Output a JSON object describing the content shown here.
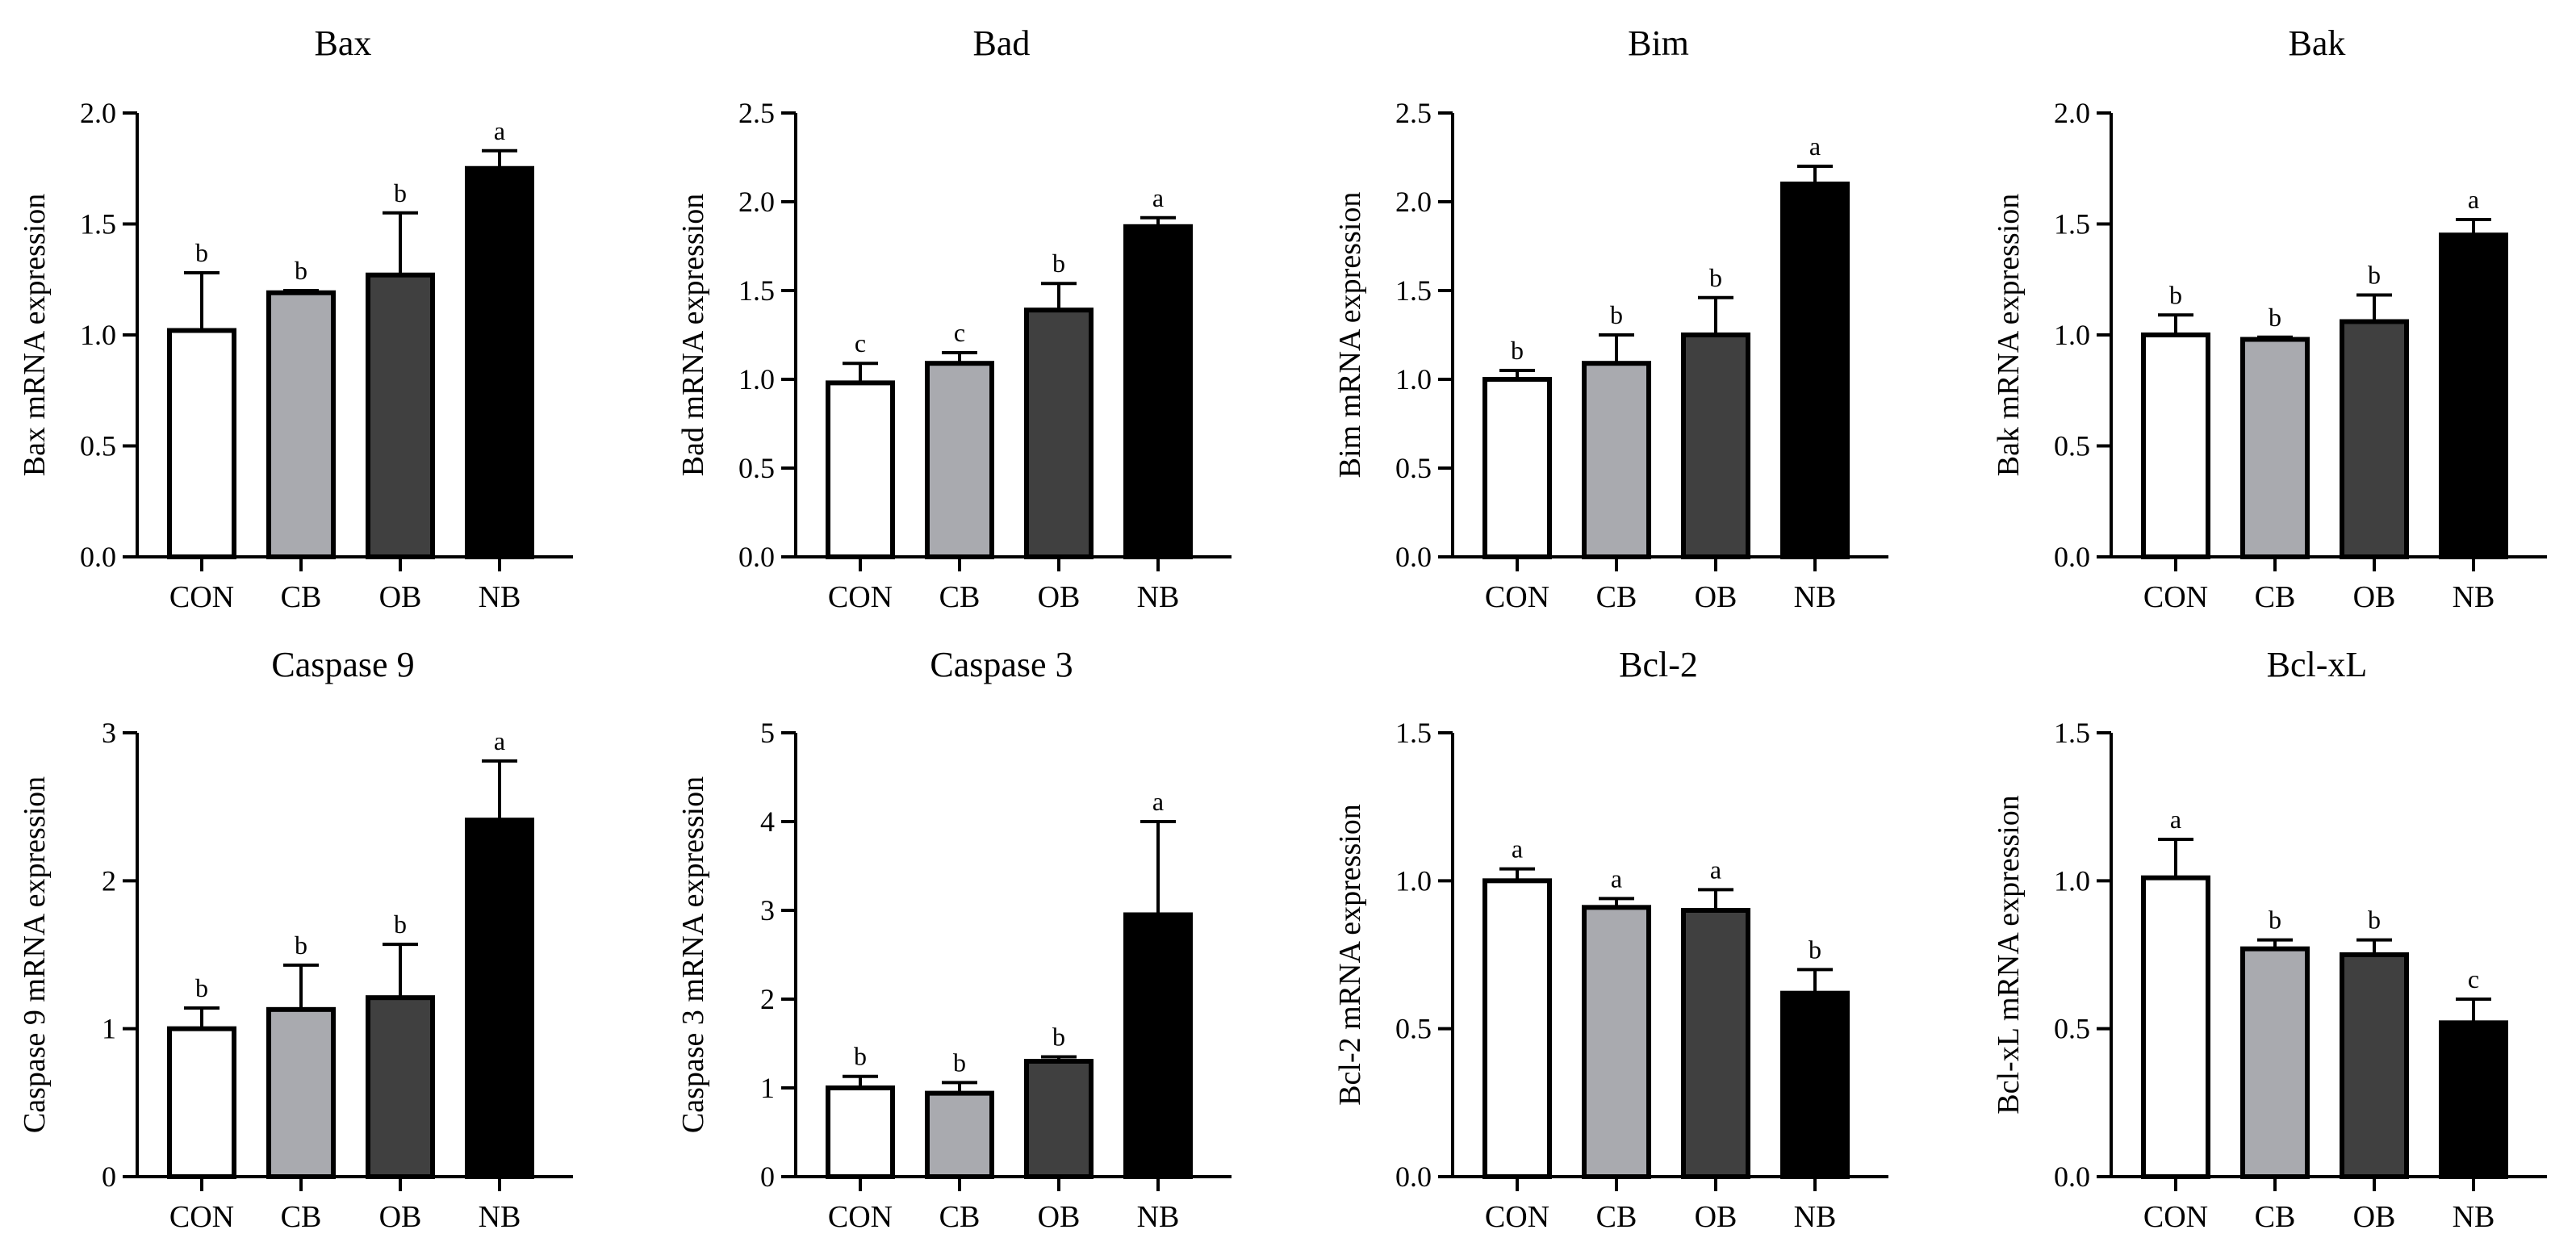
{
  "chart_data": [
    {
      "type": "bar",
      "title": "Bax",
      "ylabel": "Bax mRNA expression",
      "categories": [
        "CON",
        "CB",
        "OB",
        "NB"
      ],
      "values": [
        1.02,
        1.19,
        1.27,
        1.75
      ],
      "errors": [
        0.26,
        0.01,
        0.28,
        0.08
      ],
      "letters": [
        "b",
        "b",
        "b",
        "a"
      ],
      "ylim": [
        0,
        2.0
      ],
      "yticks": [
        "0.0",
        "0.5",
        "1.0",
        "1.5",
        "2.0"
      ]
    },
    {
      "type": "bar",
      "title": "Bad",
      "ylabel": "Bad mRNA expression",
      "categories": [
        "CON",
        "CB",
        "OB",
        "NB"
      ],
      "values": [
        0.98,
        1.09,
        1.39,
        1.86
      ],
      "errors": [
        0.11,
        0.06,
        0.15,
        0.05
      ],
      "letters": [
        "c",
        "c",
        "b",
        "a"
      ],
      "ylim": [
        0,
        2.5
      ],
      "yticks": [
        "0.0",
        "0.5",
        "1.0",
        "1.5",
        "2.0",
        "2.5"
      ]
    },
    {
      "type": "bar",
      "title": "Bim",
      "ylabel": "Bim mRNA expression",
      "categories": [
        "CON",
        "CB",
        "OB",
        "NB"
      ],
      "values": [
        1.0,
        1.09,
        1.25,
        2.1
      ],
      "errors": [
        0.05,
        0.16,
        0.21,
        0.1
      ],
      "letters": [
        "b",
        "b",
        "b",
        "a"
      ],
      "ylim": [
        0,
        2.5
      ],
      "yticks": [
        "0.0",
        "0.5",
        "1.0",
        "1.5",
        "2.0",
        "2.5"
      ]
    },
    {
      "type": "bar",
      "title": "Bak",
      "ylabel": "Bak mRNA expression",
      "categories": [
        "CON",
        "CB",
        "OB",
        "NB"
      ],
      "values": [
        1.0,
        0.98,
        1.06,
        1.45
      ],
      "errors": [
        0.09,
        0.01,
        0.12,
        0.07
      ],
      "letters": [
        "b",
        "b",
        "b",
        "a"
      ],
      "ylim": [
        0,
        2.0
      ],
      "yticks": [
        "0.0",
        "0.5",
        "1.0",
        "1.5",
        "2.0"
      ]
    },
    {
      "type": "bar",
      "title": "Caspase 9",
      "ylabel": "Caspase 9 mRNA expression",
      "categories": [
        "CON",
        "CB",
        "OB",
        "NB"
      ],
      "values": [
        1.0,
        1.13,
        1.21,
        2.41
      ],
      "errors": [
        0.14,
        0.3,
        0.36,
        0.4
      ],
      "letters": [
        "b",
        "b",
        "b",
        "a"
      ],
      "ylim": [
        0,
        3
      ],
      "yticks": [
        "0",
        "1",
        "2",
        "3"
      ]
    },
    {
      "type": "bar",
      "title": "Caspase 3",
      "ylabel": "Caspase 3 mRNA expression",
      "categories": [
        "CON",
        "CB",
        "OB",
        "NB"
      ],
      "values": [
        1.0,
        0.94,
        1.3,
        2.95
      ],
      "errors": [
        0.13,
        0.12,
        0.05,
        1.05
      ],
      "letters": [
        "b",
        "b",
        "b",
        "a"
      ],
      "ylim": [
        0,
        5
      ],
      "yticks": [
        "0",
        "1",
        "2",
        "3",
        "4",
        "5"
      ]
    },
    {
      "type": "bar",
      "title": "Bcl-2",
      "ylabel": "Bcl-2 mRNA expression",
      "categories": [
        "CON",
        "CB",
        "OB",
        "NB"
      ],
      "values": [
        1.0,
        0.91,
        0.9,
        0.62
      ],
      "errors": [
        0.04,
        0.03,
        0.07,
        0.08
      ],
      "letters": [
        "a",
        "a",
        "a",
        "b"
      ],
      "ylim": [
        0,
        1.5
      ],
      "yticks": [
        "0.0",
        "0.5",
        "1.0",
        "1.5"
      ]
    },
    {
      "type": "bar",
      "title": "Bcl-xL",
      "ylabel": "Bcl-xL mRNA expression",
      "categories": [
        "CON",
        "CB",
        "OB",
        "NB"
      ],
      "values": [
        1.01,
        0.77,
        0.75,
        0.52
      ],
      "errors": [
        0.13,
        0.03,
        0.05,
        0.08
      ],
      "letters": [
        "a",
        "b",
        "b",
        "c"
      ],
      "ylim": [
        0,
        1.5
      ],
      "yticks": [
        "0.0",
        "0.5",
        "1.0",
        "1.5"
      ]
    }
  ],
  "colors": {
    "CON": "#ffffff",
    "CB": "#a9aaaf",
    "OB": "#404040",
    "NB": "#000000",
    "axis": "#000000"
  }
}
